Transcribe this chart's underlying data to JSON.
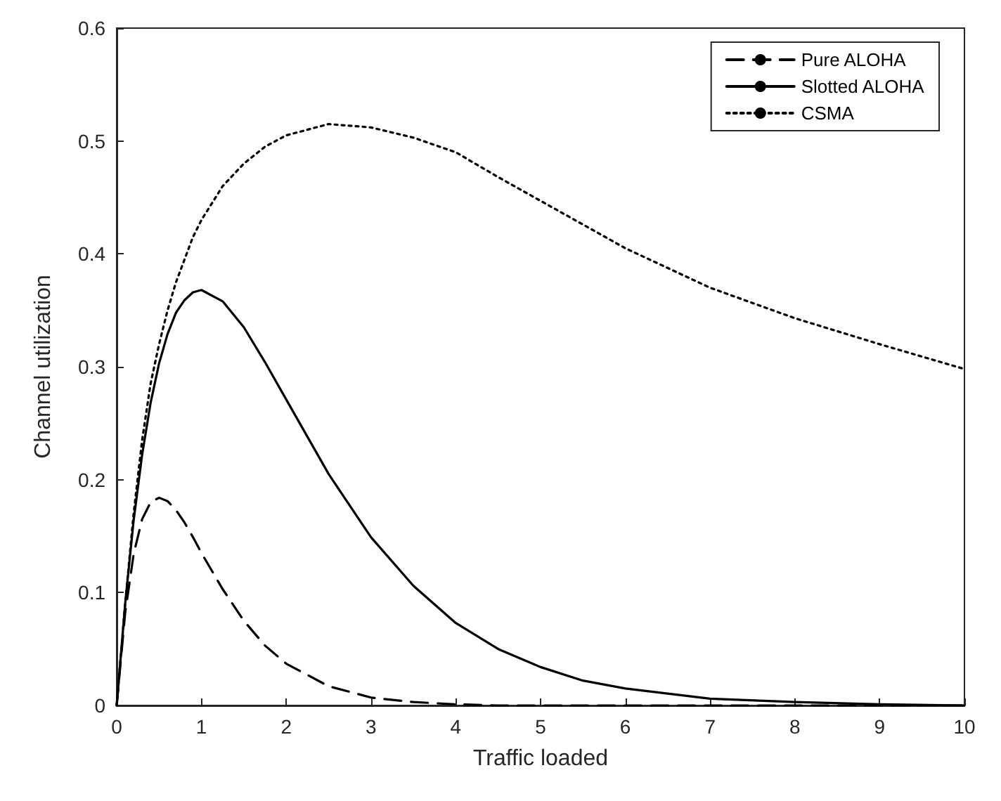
{
  "chart_data": {
    "type": "line",
    "xlabel": "Traffic loaded",
    "ylabel": "Channel utilization",
    "x": [
      0,
      0.1,
      0.2,
      0.3,
      0.4,
      0.5,
      0.6,
      0.7,
      0.8,
      0.9,
      1,
      1.25,
      1.5,
      1.75,
      2,
      2.5,
      3,
      3.5,
      4,
      4.5,
      5,
      5.5,
      6,
      7,
      8,
      9,
      10
    ],
    "series": [
      {
        "name": "Pure ALOHA",
        "color": "#000000",
        "line_style": "dashed",
        "values": [
          0,
          0.082,
          0.134,
          0.165,
          0.18,
          0.184,
          0.181,
          0.173,
          0.162,
          0.149,
          0.135,
          0.103,
          0.075,
          0.053,
          0.037,
          0.017,
          0.007,
          0.003,
          0.001,
          0,
          0,
          0,
          0,
          0,
          0,
          0,
          0
        ]
      },
      {
        "name": "Slotted ALOHA",
        "color": "#000000",
        "line_style": "solid",
        "values": [
          0,
          0.09,
          0.164,
          0.222,
          0.268,
          0.303,
          0.329,
          0.348,
          0.359,
          0.366,
          0.368,
          0.358,
          0.335,
          0.304,
          0.271,
          0.205,
          0.149,
          0.106,
          0.073,
          0.05,
          0.034,
          0.022,
          0.015,
          0.006,
          0.003,
          0.001,
          0
        ]
      },
      {
        "name": "CSMA",
        "color": "#000000",
        "line_style": "dotted",
        "values": [
          0,
          0.09,
          0.17,
          0.235,
          0.285,
          0.32,
          0.35,
          0.375,
          0.395,
          0.415,
          0.43,
          0.46,
          0.48,
          0.495,
          0.505,
          0.515,
          0.512,
          0.503,
          0.49,
          0.468,
          0.447,
          0.426,
          0.405,
          0.37,
          0.343,
          0.32,
          0.298
        ]
      }
    ],
    "xlim": [
      0,
      10
    ],
    "xticks": [
      0,
      1,
      2,
      3,
      4,
      5,
      6,
      7,
      8,
      9,
      10
    ],
    "ylim": [
      0,
      0.6
    ],
    "yticks": [
      0,
      0.1,
      0.2,
      0.3,
      0.4,
      0.5,
      0.6
    ],
    "grid": false,
    "legend": "top right",
    "marker": "none"
  }
}
